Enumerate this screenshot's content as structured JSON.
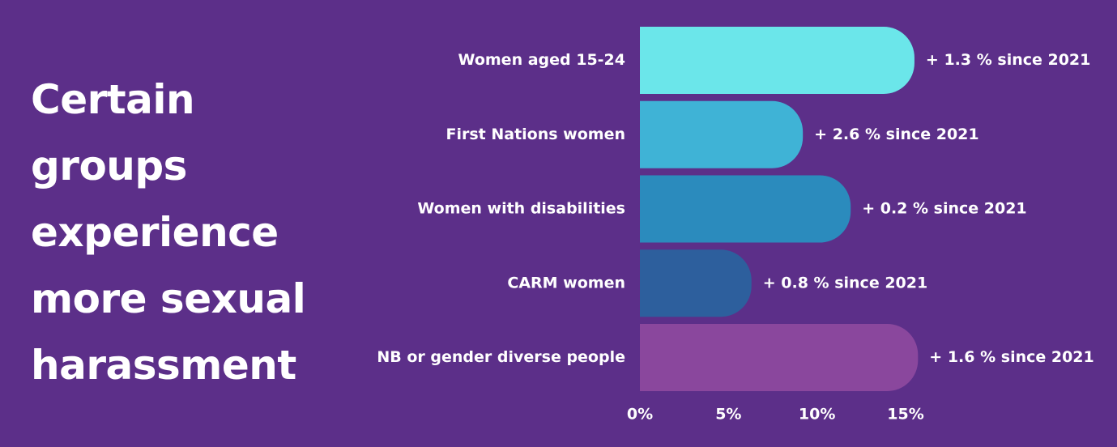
{
  "headline": {
    "lines": [
      "Certain",
      "groups",
      "experience",
      "more sexual",
      "harassment"
    ]
  },
  "chart_data": {
    "type": "bar",
    "orientation": "horizontal",
    "title": "Certain groups experience more sexual harassment",
    "categories": [
      "Women aged 15-24",
      "First Nations women",
      "Women with disabilities",
      "CARM women",
      "NB or gender diverse people"
    ],
    "values": [
      15.5,
      9.2,
      11.9,
      6.3,
      15.7
    ],
    "changes": [
      "+ 1.3 % since 2021",
      "+ 2.6 % since 2021",
      "+ 0.2 % since 2021",
      "+ 0.8 % since 2021",
      "+ 1.6 % since 2021"
    ],
    "colors": [
      "#6be6ea",
      "#3fb3d6",
      "#2b8bbd",
      "#2d5f9d",
      "#8a479d"
    ],
    "xlim": [
      0,
      15
    ],
    "xticks": [
      0,
      5,
      10,
      15
    ],
    "xtick_labels": [
      "0%",
      "5%",
      "10%",
      "15%"
    ],
    "grid": false,
    "legend": "none"
  }
}
